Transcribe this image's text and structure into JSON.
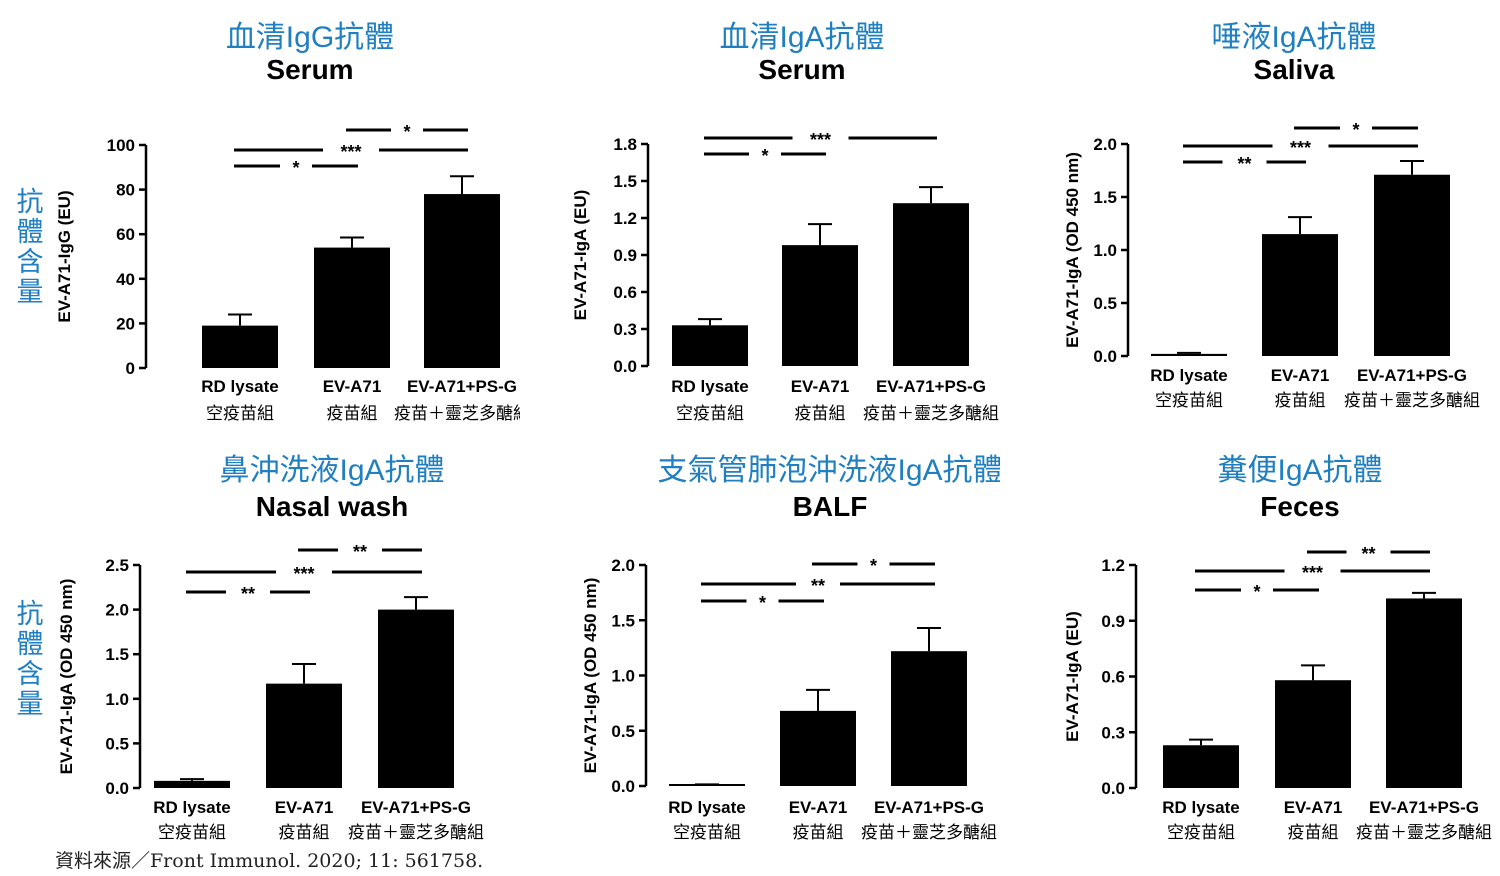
{
  "side_label": "抗體含量",
  "source": "資料來源／Front Immunol. 2020; 11: 561758.",
  "colors": {
    "title": "#1f7fc0",
    "bar": "#000000"
  },
  "chart_data": [
    {
      "type": "bar",
      "title_zh": "血清IgG抗體",
      "title": "Serum",
      "ylabel": "EV-A71-IgG (EU)",
      "ylim": [
        0,
        100
      ],
      "yticks": [
        "0",
        "20",
        "40",
        "60",
        "80",
        "100"
      ],
      "categories": [
        "RD lysate",
        "EV-A71",
        "EV-A71+PS-G"
      ],
      "categories_zh": [
        "空疫苗組",
        "疫苗組",
        "疫苗＋靈芝多醣組"
      ],
      "values": [
        19,
        54,
        78
      ],
      "errors": [
        5,
        4.5,
        8
      ],
      "significance": [
        {
          "from": 0,
          "to": 1,
          "label": "*"
        },
        {
          "from": 0,
          "to": 2,
          "label": "***"
        },
        {
          "from": 1,
          "to": 2,
          "label": "*"
        }
      ]
    },
    {
      "type": "bar",
      "title_zh": "血清IgA抗體",
      "title": "Serum",
      "ylabel": "EV-A71-IgA (EU)",
      "ylim": [
        0,
        1.8
      ],
      "yticks": [
        "0.0",
        "0.3",
        "0.6",
        "0.9",
        "1.2",
        "1.5",
        "1.8"
      ],
      "categories": [
        "RD lysate",
        "EV-A71",
        "EV-A71+PS-G"
      ],
      "categories_zh": [
        "空疫苗組",
        "疫苗組",
        "疫苗＋靈芝多醣組"
      ],
      "values": [
        0.33,
        0.98,
        1.32
      ],
      "errors": [
        0.05,
        0.17,
        0.13
      ],
      "significance": [
        {
          "from": 0,
          "to": 1,
          "label": "*"
        },
        {
          "from": 0,
          "to": 2,
          "label": "***"
        }
      ]
    },
    {
      "type": "bar",
      "title_zh": "唾液IgA抗體",
      "title": "Saliva",
      "ylabel": "EV-A71-IgA (OD 450 nm)",
      "ylim": [
        0,
        2.0
      ],
      "yticks": [
        "0.0",
        "0.5",
        "1.0",
        "1.5",
        "2.0"
      ],
      "categories": [
        "RD lysate",
        "EV-A71",
        "EV-A71+PS-G"
      ],
      "categories_zh": [
        "空疫苗組",
        "疫苗組",
        "疫苗＋靈芝多醣組"
      ],
      "values": [
        0.02,
        1.15,
        1.71
      ],
      "errors": [
        0.01,
        0.16,
        0.13
      ],
      "significance": [
        {
          "from": 0,
          "to": 1,
          "label": "**"
        },
        {
          "from": 0,
          "to": 2,
          "label": "***"
        },
        {
          "from": 1,
          "to": 2,
          "label": "*"
        }
      ]
    },
    {
      "type": "bar",
      "title_zh": "鼻沖洗液IgA抗體",
      "title": "Nasal wash",
      "ylabel": "EV-A71-IgA (OD 450 nm)",
      "ylim": [
        0,
        2.5
      ],
      "yticks": [
        "0.0",
        "0.5",
        "1.0",
        "1.5",
        "2.0",
        "2.5"
      ],
      "categories": [
        "RD lysate",
        "EV-A71",
        "EV-A71+PS-G"
      ],
      "categories_zh": [
        "空疫苗組",
        "疫苗組",
        "疫苗＋靈芝多醣組"
      ],
      "values": [
        0.08,
        1.17,
        2.0
      ],
      "errors": [
        0.02,
        0.22,
        0.14
      ],
      "significance": [
        {
          "from": 0,
          "to": 1,
          "label": "**"
        },
        {
          "from": 0,
          "to": 2,
          "label": "***"
        },
        {
          "from": 1,
          "to": 2,
          "label": "**"
        }
      ]
    },
    {
      "type": "bar",
      "title_zh": "支氣管肺泡沖洗液IgA抗體",
      "title": "BALF",
      "ylabel": "EV-A71-IgA (OD 450 nm)",
      "ylim": [
        0,
        2.0
      ],
      "yticks": [
        "0.0",
        "0.5",
        "1.0",
        "1.5",
        "2.0"
      ],
      "categories": [
        "RD lysate",
        "EV-A71",
        "EV-A71+PS-G"
      ],
      "categories_zh": [
        "空疫苗組",
        "疫苗組",
        "疫苗＋靈芝多醣組"
      ],
      "values": [
        0.01,
        0.68,
        1.22
      ],
      "errors": [
        0.005,
        0.19,
        0.21
      ],
      "significance": [
        {
          "from": 0,
          "to": 1,
          "label": "*"
        },
        {
          "from": 0,
          "to": 2,
          "label": "**"
        },
        {
          "from": 1,
          "to": 2,
          "label": "*"
        }
      ]
    },
    {
      "type": "bar",
      "title_zh": "糞便IgA抗體",
      "title": "Feces",
      "ylabel": "EV-A71-IgA (EU)",
      "ylim": [
        0,
        1.2
      ],
      "yticks": [
        "0.0",
        "0.3",
        "0.6",
        "0.9",
        "1.2"
      ],
      "categories": [
        "RD lysate",
        "EV-A71",
        "EV-A71+PS-G"
      ],
      "categories_zh": [
        "空疫苗組",
        "疫苗組",
        "疫苗＋靈芝多醣組"
      ],
      "values": [
        0.23,
        0.58,
        1.02
      ],
      "errors": [
        0.03,
        0.08,
        0.03
      ],
      "significance": [
        {
          "from": 0,
          "to": 1,
          "label": "*"
        },
        {
          "from": 0,
          "to": 2,
          "label": "***"
        },
        {
          "from": 1,
          "to": 2,
          "label": "**"
        }
      ]
    }
  ]
}
